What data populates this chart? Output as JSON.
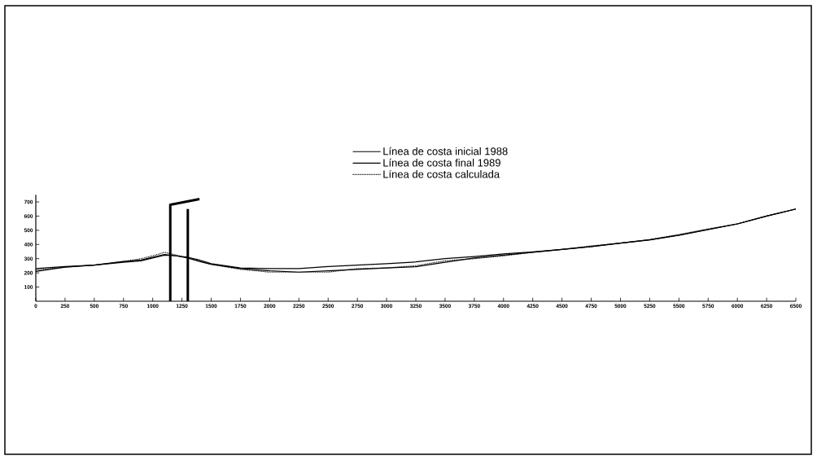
{
  "chart_data": {
    "type": "line",
    "xlim": [
      0,
      6500
    ],
    "ylim": [
      0,
      750
    ],
    "xticks": [
      0,
      250,
      500,
      750,
      1000,
      1250,
      1500,
      1750,
      2000,
      2250,
      2500,
      2750,
      3000,
      3250,
      3500,
      3750,
      4000,
      4250,
      4500,
      4750,
      5000,
      5250,
      5500,
      5750,
      6000,
      6250,
      6500
    ],
    "yticks": [
      100,
      200,
      300,
      400,
      500,
      600,
      700
    ],
    "grid": false,
    "legend": "top",
    "marker": "none",
    "x": [
      0,
      250,
      500,
      750,
      900,
      1000,
      1100,
      1200,
      1300,
      1400,
      1500,
      1750,
      2000,
      2250,
      2500,
      2750,
      3000,
      3250,
      3500,
      3750,
      4000,
      4250,
      4500,
      4750,
      5000,
      5250,
      5500,
      5750,
      6000,
      6250,
      6500
    ],
    "series": [
      {
        "name": "Línea de costa inicial 1988",
        "color": "#000000",
        "line_style": "solid",
        "values": [
          230,
          245,
          255,
          280,
          290,
          310,
          330,
          320,
          310,
          290,
          265,
          235,
          230,
          230,
          245,
          255,
          265,
          277,
          300,
          315,
          334,
          348,
          365,
          385,
          410,
          432,
          465,
          505,
          545,
          600,
          650
        ]
      },
      {
        "name": "Línea de costa final 1989",
        "color": "#000000",
        "line_style": "solid",
        "values": [
          210,
          240,
          255,
          275,
          285,
          305,
          325,
          320,
          305,
          280,
          260,
          230,
          215,
          205,
          215,
          225,
          235,
          243,
          275,
          305,
          325,
          345,
          365,
          385,
          410,
          432,
          465,
          505,
          545,
          600,
          650
        ]
      },
      {
        "name": "Línea de costa calculada",
        "color": "#000000",
        "line_style": "dotted",
        "values": [
          220,
          240,
          255,
          280,
          300,
          320,
          345,
          325,
          305,
          285,
          260,
          225,
          205,
          205,
          205,
          230,
          235,
          250,
          285,
          300,
          320,
          345,
          365,
          390,
          410,
          435,
          470,
          510,
          545,
          600,
          650
        ]
      },
      {
        "color": "#000000",
        "line_style": "solid",
        "x": [
          1150,
          1150,
          1400
        ],
        "values": [
          0,
          680,
          720
        ]
      },
      {
        "color": "#000000",
        "line_style": "solid",
        "x": [
          1300,
          1300
        ],
        "values": [
          0,
          650
        ]
      }
    ]
  }
}
